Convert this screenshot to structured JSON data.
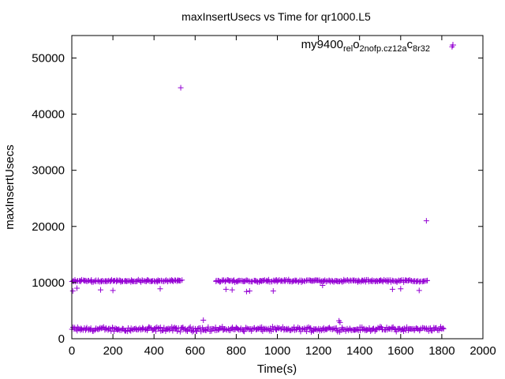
{
  "chart_data": {
    "type": "scatter",
    "title": "maxInsertUsecs vs Time for qr1000.L5",
    "xlabel": "Time(s)",
    "ylabel": "maxInsertUsecs",
    "xlim": [
      0,
      2000
    ],
    "ylim": [
      0,
      54000
    ],
    "x_ticks": [
      0,
      200,
      400,
      600,
      800,
      1000,
      1200,
      1400,
      1600,
      1800,
      2000
    ],
    "y_ticks": [
      0,
      10000,
      20000,
      30000,
      40000,
      50000
    ],
    "x_tick_labels": [
      "0",
      "200",
      "400",
      "600",
      "800",
      "1000",
      "1200",
      "1400",
      "1600",
      "1800",
      "2000"
    ],
    "y_tick_labels": [
      "0",
      "10000",
      "20000",
      "30000",
      "40000",
      "50000"
    ],
    "grid": false,
    "legend_position": "top-right",
    "marker": "+",
    "series": [
      {
        "name": "my9400_rel_o2nofp.cz12a_c8r32",
        "name_parts": [
          "my9400",
          "rel",
          "o",
          "2nofp.cz12a",
          "c",
          "8r32"
        ],
        "color": "#9400d3",
        "bands": [
          {
            "x_start": 0,
            "x_end": 1810,
            "x_step": 5,
            "y_center": 1700,
            "y_spread": 500
          },
          {
            "x_start": 0,
            "x_end": 535,
            "x_step": 5,
            "y_center": 10300,
            "y_spread": 250
          },
          {
            "x_start": 700,
            "x_end": 1730,
            "x_step": 5,
            "y_center": 10300,
            "y_spread": 250
          }
        ],
        "points": [
          {
            "x": 530,
            "y": 44700
          },
          {
            "x": 1850,
            "y": 52000
          },
          {
            "x": 1725,
            "y": 21000
          },
          {
            "x": 640,
            "y": 3300
          },
          {
            "x": 1300,
            "y": 3200
          },
          {
            "x": 1305,
            "y": 2900
          },
          {
            "x": 5,
            "y": 8500
          },
          {
            "x": 25,
            "y": 9000
          },
          {
            "x": 140,
            "y": 8700
          },
          {
            "x": 200,
            "y": 8600
          },
          {
            "x": 430,
            "y": 8900
          },
          {
            "x": 750,
            "y": 8800
          },
          {
            "x": 780,
            "y": 8700
          },
          {
            "x": 850,
            "y": 8400
          },
          {
            "x": 865,
            "y": 8500
          },
          {
            "x": 980,
            "y": 8500
          },
          {
            "x": 1220,
            "y": 9500
          },
          {
            "x": 1560,
            "y": 8800
          },
          {
            "x": 1600,
            "y": 8900
          },
          {
            "x": 1690,
            "y": 8600
          }
        ]
      }
    ]
  }
}
